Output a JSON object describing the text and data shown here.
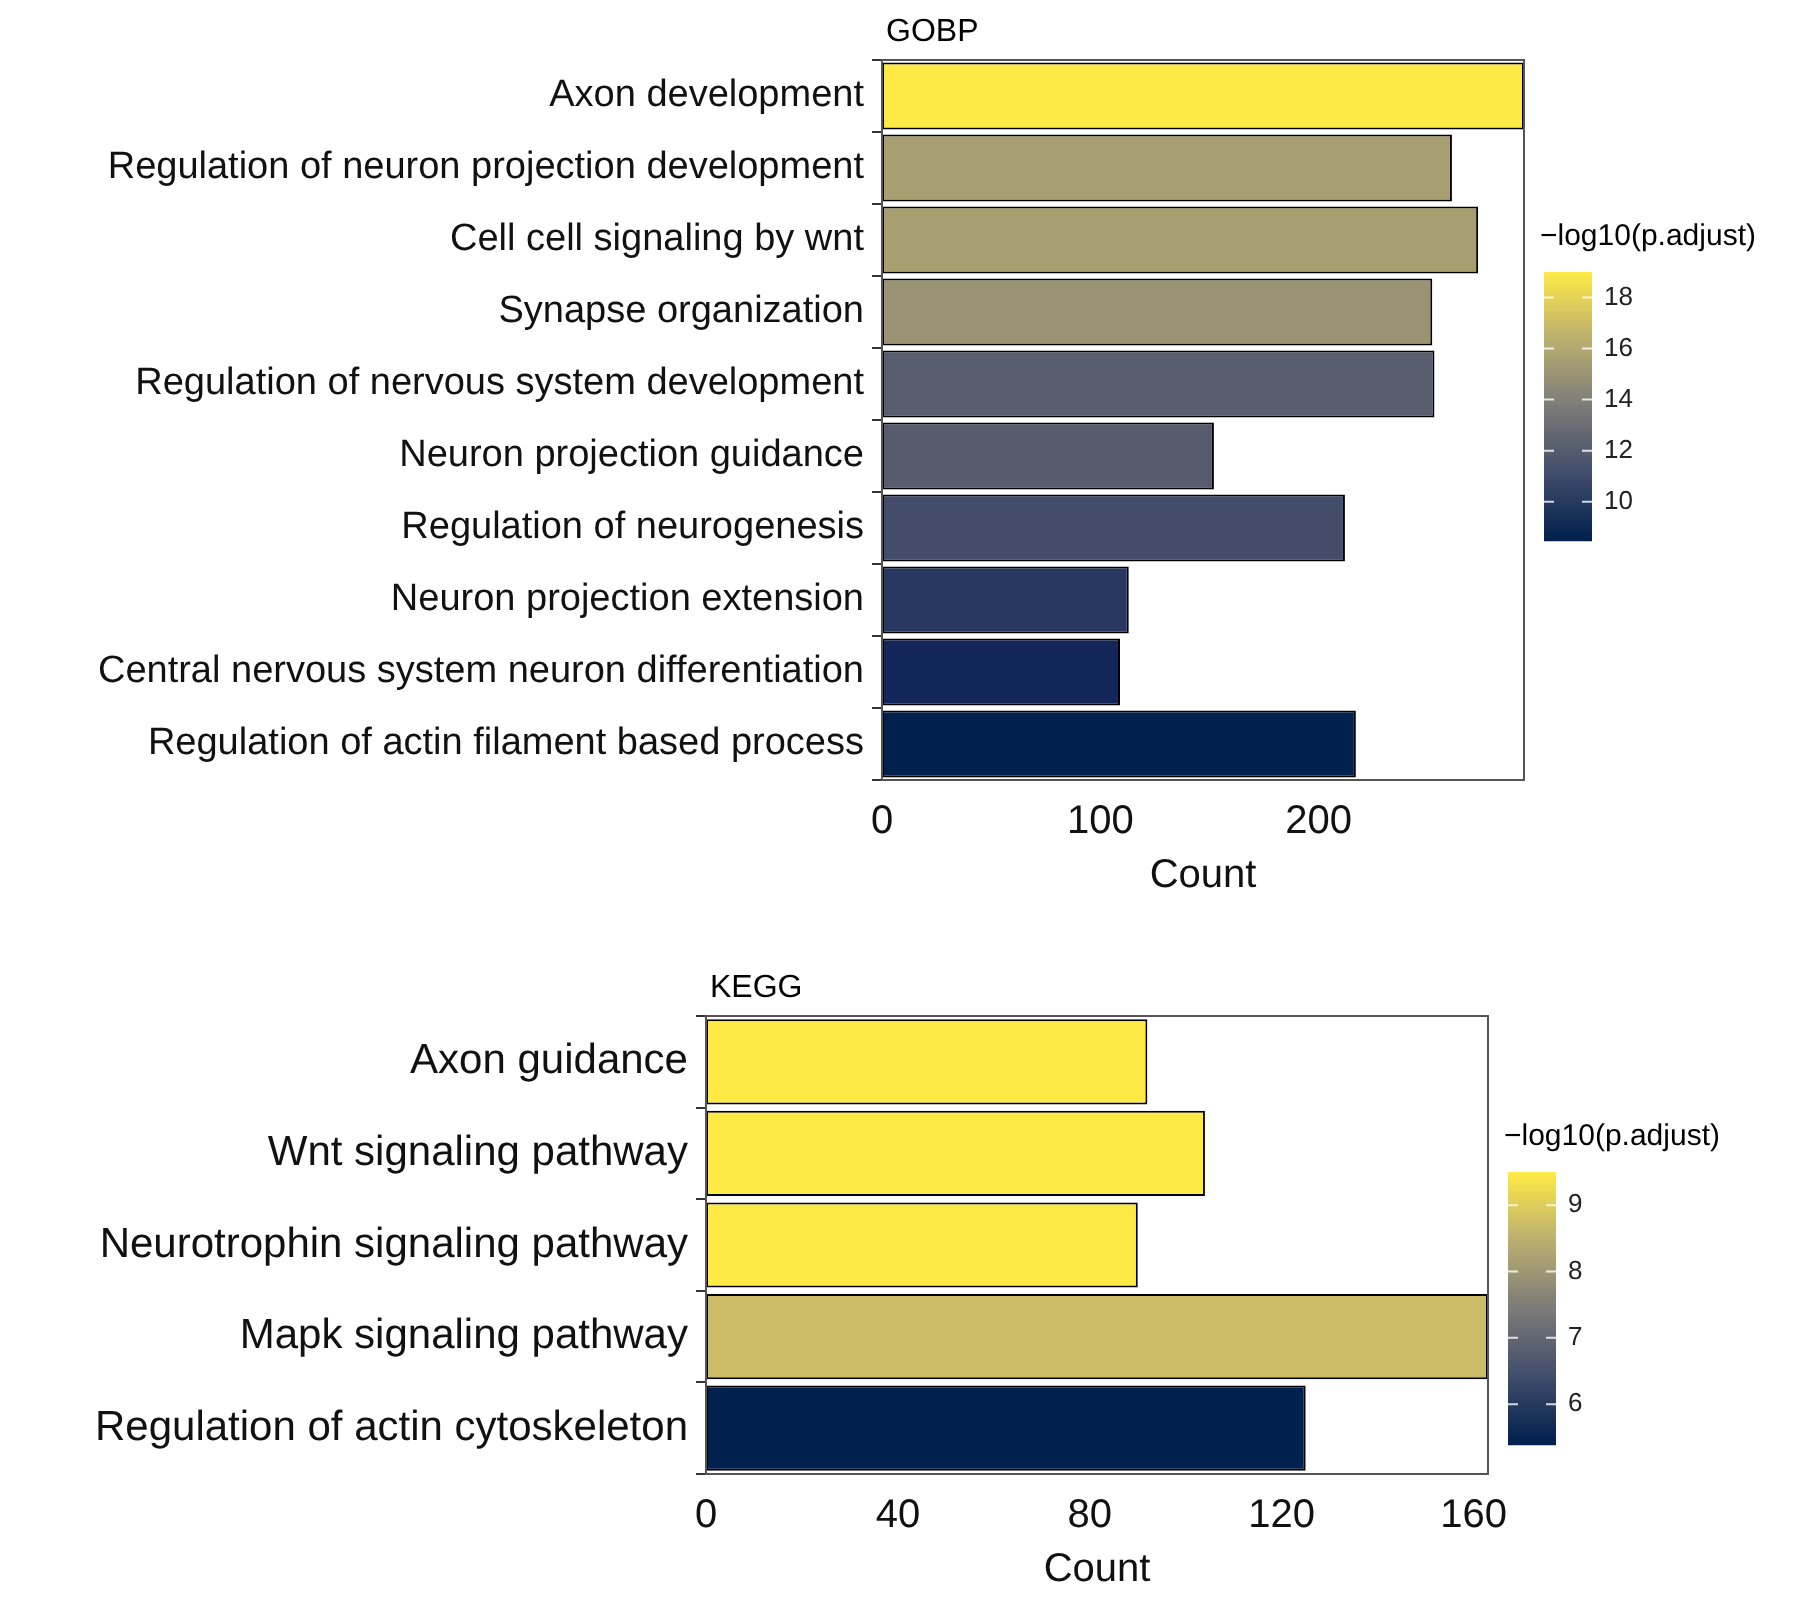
{
  "chart_data": [
    {
      "type": "bar",
      "orientation": "horizontal",
      "title": "GOBP",
      "xlabel": "Count",
      "clabel": "−log10(p.adjust)",
      "categories": [
        "Axon development",
        "Regulation of neuron projection development",
        "Cell cell signaling by wnt",
        "Synapse organization",
        "Regulation of nervous system development",
        "Neuron projection guidance",
        "Regulation of neurogenesis",
        "Neuron projection extension",
        "Central nervous system neuron differentiation",
        "Regulation of actin filament based process"
      ],
      "values": [
        294,
        261,
        273,
        252,
        253,
        152,
        212,
        113,
        109,
        217
      ],
      "colors": [
        "#ffe945",
        "#a89f70",
        "#a89f70",
        "#9a9474",
        "#585e6f",
        "#565b6e",
        "#434d6b",
        "#293861",
        "#13265a",
        "#00204e"
      ],
      "xlim": [
        0,
        294
      ],
      "xticks": [
        0,
        100,
        200
      ],
      "clim": [
        8.5,
        19
      ],
      "cticks": [
        10,
        12,
        14,
        16,
        18
      ]
    },
    {
      "type": "bar",
      "orientation": "horizontal",
      "title": "KEGG",
      "xlabel": "Count",
      "clabel": "−log10(p.adjust)",
      "categories": [
        "Axon guidance",
        "Wnt signaling pathway",
        "Neurotrophin signaling pathway",
        "Mapk signaling pathway",
        "Regulation of actin cytoskeleton"
      ],
      "values": [
        92,
        104,
        90,
        163,
        125
      ],
      "colors": [
        "#ffe945",
        "#ffe945",
        "#ffe945",
        "#cdbd68",
        "#00204e"
      ],
      "xlim": [
        0,
        163
      ],
      "xticks": [
        0,
        40,
        80,
        120,
        160
      ],
      "clim": [
        5.4,
        9.5
      ],
      "cticks": [
        6,
        7,
        8,
        9
      ]
    }
  ]
}
